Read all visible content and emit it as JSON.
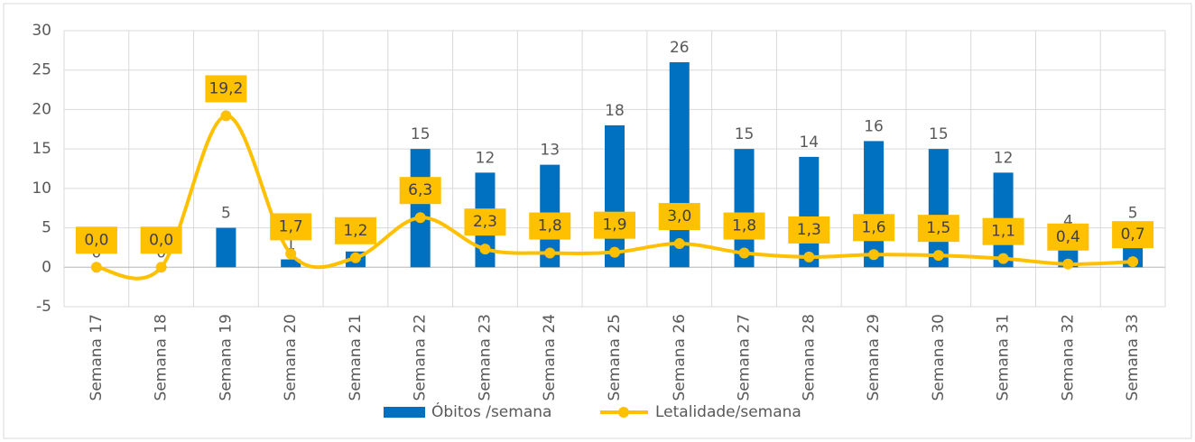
{
  "chart_data": {
    "type": "bar-line",
    "categories": [
      "Semana 17",
      "Semana 18",
      "Semana 19",
      "Semana 20",
      "Semana 21",
      "Semana 22",
      "Semana 23",
      "Semana 24",
      "Semana 25",
      "Semana 26",
      "Semana 27",
      "Semana 28",
      "Semana 29",
      "Semana 30",
      "Semana 31",
      "Semana 32",
      "Semana 33"
    ],
    "series": [
      {
        "name": "Óbitos /semana",
        "type": "bar",
        "color": "#0070c0",
        "values": [
          0,
          0,
          5,
          1,
          2,
          15,
          12,
          13,
          18,
          26,
          15,
          14,
          16,
          15,
          12,
          4,
          5
        ]
      },
      {
        "name": "Letalidade/semana",
        "type": "line",
        "color": "#ffc000",
        "values": [
          0.0,
          0.0,
          19.2,
          1.7,
          1.2,
          6.3,
          2.3,
          1.8,
          1.9,
          3.0,
          1.8,
          1.3,
          1.6,
          1.5,
          1.1,
          0.4,
          0.7
        ],
        "value_labels": [
          "0,0",
          "0,0",
          "19,2",
          "1,7",
          "1,2",
          "6,3",
          "2,3",
          "1,8",
          "1,9",
          "3,0",
          "1,8",
          "1,3",
          "1,6",
          "1,5",
          "1,1",
          "0,4",
          "0,7"
        ]
      }
    ],
    "ylim": [
      -5,
      30
    ],
    "yticks": [
      -5,
      0,
      5,
      10,
      15,
      20,
      25,
      30
    ],
    "grid": true,
    "legend": "bottom"
  }
}
